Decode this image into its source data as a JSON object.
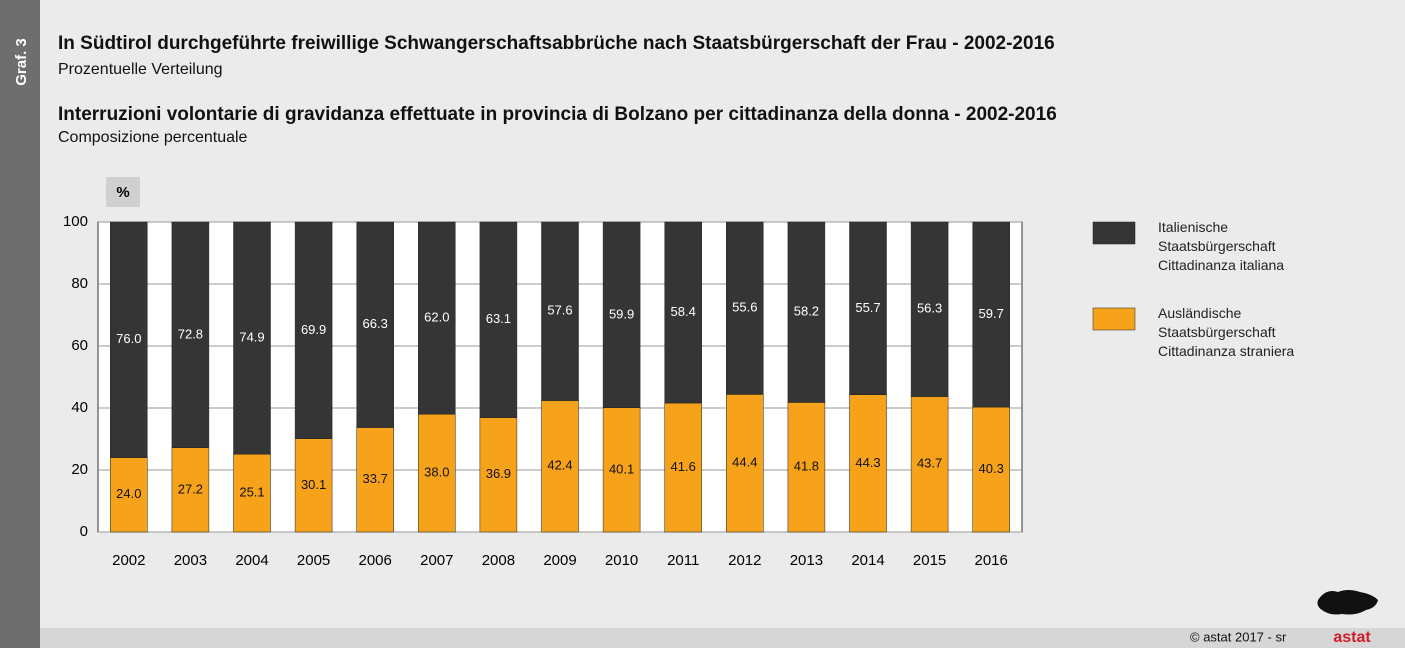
{
  "sidebar": "Graf. 3",
  "footer": {
    "credit": "© astat 2017 - sr",
    "logo": "astat"
  },
  "chart_data": {
    "type": "stacked_bar",
    "title": "In Südtirol durchgeführte freiwillige Schwangerschaftsabbrüche nach Staatsbürgerschaft der Frau - 2002-2016",
    "subtitle": "Prozentuelle Verteilung",
    "title_it": "Interruzioni volontarie di gravidanza effettuate in provincia di Bolzano per cittadinanza della donna - 2002-2016",
    "subtitle_it": "Composizione percentuale",
    "y_unit": "%",
    "categories": [
      "2002",
      "2003",
      "2004",
      "2005",
      "2006",
      "2007",
      "2008",
      "2009",
      "2010",
      "2011",
      "2012",
      "2013",
      "2014",
      "2015",
      "2016"
    ],
    "series": [
      {
        "name": "Italienische Staatsbürgerschaft Cittadinanza italiana",
        "color": "#353535",
        "values": [
          76.0,
          72.8,
          74.9,
          69.9,
          66.3,
          62.0,
          63.1,
          57.6,
          59.9,
          58.4,
          55.6,
          58.2,
          55.7,
          56.3,
          59.7
        ],
        "value_labels": [
          "76.0",
          "72.8",
          "74.9",
          "69.9",
          "66.3",
          "62.0",
          "63.1",
          "57.6",
          "59.9",
          "58.4",
          "55.6",
          "58.2",
          "55.7",
          "56.3",
          "59.7"
        ]
      },
      {
        "name": "Ausländische Staatsbürgerschaft Cittadinanza straniera",
        "color": "#f7a21b",
        "values": [
          24.0,
          27.2,
          25.1,
          30.1,
          33.7,
          38.0,
          36.9,
          42.4,
          40.1,
          41.6,
          44.4,
          41.8,
          44.3,
          43.7,
          40.3
        ],
        "value_labels": [
          "24.0",
          "27.2",
          "25.1",
          "30.1",
          "33.7",
          "38.0",
          "36.9",
          "42.4",
          "40.1",
          "41.6",
          "44.4",
          "41.8",
          "44.3",
          "43.7",
          "40.3"
        ]
      }
    ],
    "ylim": [
      0,
      100
    ],
    "yticks": [
      0,
      20,
      40,
      60,
      80,
      100
    ],
    "grid": true,
    "legend": "right"
  }
}
